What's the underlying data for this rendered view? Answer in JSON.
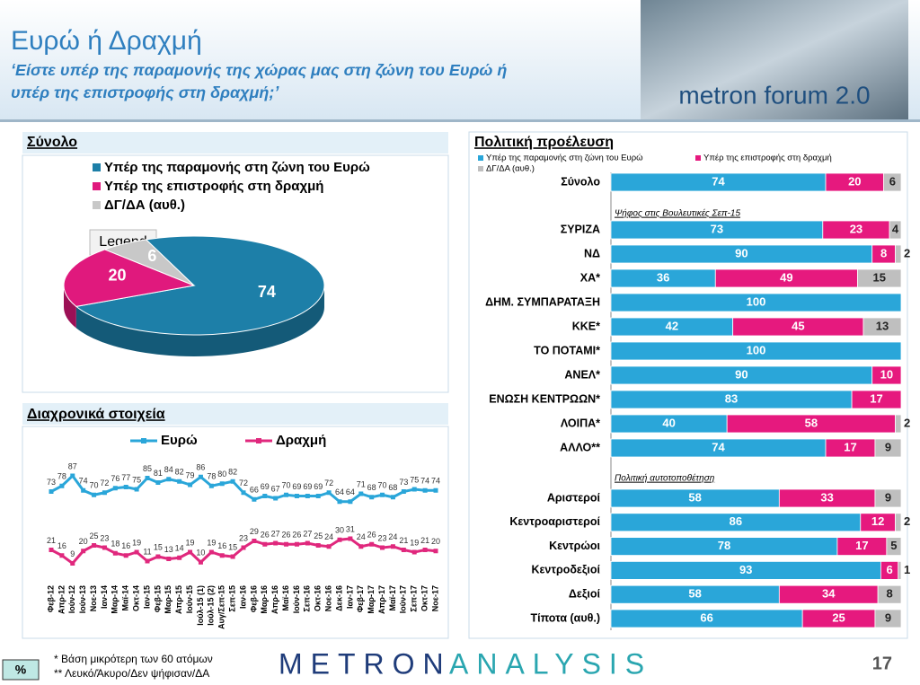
{
  "header": {
    "title": "Ευρώ ή Δραχμή",
    "subtitle_line1": "‘Είστε υπέρ της παραμονής της χώρας μας στη ζώνη του Ευρώ ή",
    "subtitle_line2": "υπέρ της επιστροφής στη δραχμή;’",
    "logo": "metron forum 2.0"
  },
  "chart_data": [
    {
      "type": "pie",
      "title": "Σύνολο",
      "legend_title": "Legend",
      "categories": [
        "Υπέρ της παραμονής στη ζώνη του Ευρώ",
        "Υπέρ της επιστροφής στη δραχμή",
        "ΔΓ/ΔΑ (αυθ.)"
      ],
      "values": [
        74,
        20,
        6
      ],
      "colors": [
        "#1d7fa8",
        "#e0197d",
        "#c8c8c8"
      ]
    },
    {
      "type": "line",
      "title": "Διαχρονικά στοιχεία",
      "categories": [
        "Φεβ-12",
        "Απρ-12",
        "Ιούν-12",
        "Ιούν-13",
        "Νοε-13",
        "Ιαν-14",
        "Μαρ-14",
        "Μαϊ-14",
        "Οκτ-14",
        "Ιαν-15",
        "Φεβ-15",
        "Μαρ-15",
        "Απρ-15",
        "Ιούν-15",
        "Ιούλ-15 (1)",
        "Ιούλ-15 (2)",
        "Αυγ/Σεπ-15",
        "Σεπ-15",
        "Ιαν-16",
        "Φεβ-16",
        "Μαρ-16",
        "Απρ-16",
        "Μαϊ-16",
        "Ιούν-16",
        "Σεπ-16",
        "Οκτ-16",
        "Νοε-16",
        "Δεκ-16",
        "Ιαν-17",
        "Φεβ-17",
        "Μαρ-17",
        "Απρ-17",
        "Μαϊ-17",
        "Ιούν-17",
        "Σεπ-17",
        "Οκτ-17",
        "Νοε-17"
      ],
      "series": [
        {
          "name": "Ευρώ",
          "color": "#2aa6d9",
          "values": [
            73,
            78,
            87,
            74,
            70,
            72,
            76,
            77,
            75,
            85,
            81,
            84,
            82,
            79,
            86,
            78,
            80,
            82,
            72,
            66,
            69,
            67,
            70,
            69,
            69,
            69,
            72,
            64,
            64,
            71,
            68,
            70,
            68,
            73,
            75,
            74,
            74
          ]
        },
        {
          "name": "Δραχμή",
          "color": "#e0287d",
          "values": [
            21,
            16,
            9,
            20,
            25,
            23,
            18,
            16,
            19,
            11,
            15,
            13,
            14,
            19,
            10,
            19,
            16,
            15,
            23,
            29,
            26,
            27,
            26,
            26,
            27,
            25,
            24,
            30,
            31,
            24,
            26,
            23,
            24,
            21,
            19,
            21,
            20
          ]
        }
      ]
    },
    {
      "type": "stacked_bar",
      "title": "Πολιτική προέλευση",
      "group_labels": [
        "Ψήφος στις Βουλευτικές Σεπ-15",
        "Πολιτική αυτοτοποθέτηση"
      ],
      "categories": [
        "Σύνολο",
        "ΣΥΡΙΖΑ",
        "ΝΔ",
        "ΧΑ*",
        "ΔΗΜ. ΣΥΜΠΑΡΑΤΑΞΗ",
        "ΚΚΕ*",
        "ΤΟ ΠΟΤΑΜΙ*",
        "ΑΝΕΛ*",
        "ΕΝΩΣΗ ΚΕΝΤΡΩΩΝ*",
        "ΛΟΙΠΑ*",
        "ΑΛΛΟ**",
        "Αριστεροί",
        "Κεντροαριστεροί",
        "Κεντρώοι",
        "Κεντροδεξιοί",
        "Δεξιοί",
        "Τίποτα (αυθ.)"
      ],
      "series": [
        {
          "name": "Υπέρ της παραμονής στη ζώνη του Ευρώ",
          "color": "#2aa6d9",
          "values": [
            74,
            73,
            90,
            36,
            100,
            42,
            100,
            90,
            83,
            40,
            74,
            58,
            86,
            78,
            93,
            58,
            66
          ]
        },
        {
          "name": "Υπέρ της επιστροφής στη δραχμή",
          "color": "#e6197e",
          "values": [
            20,
            23,
            8,
            49,
            0,
            45,
            0,
            10,
            17,
            58,
            17,
            33,
            12,
            17,
            6,
            34,
            25
          ]
        },
        {
          "name": "ΔΓ/ΔΑ (αυθ.)",
          "color": "#bfbfbf",
          "values": [
            6,
            4,
            2,
            15,
            0,
            13,
            0,
            0,
            0,
            2,
            9,
            9,
            2,
            5,
            1,
            8,
            9
          ]
        }
      ]
    }
  ],
  "footer": {
    "percent": "%",
    "note1": "*  Βάση μικρότερη των 60 ατόμων",
    "note2": "** Λευκό/Άκυρο/Δεν ψήφισαν/ΔΑ",
    "brand_a": "METRON",
    "brand_b": "ANALYSIS",
    "page": "17"
  }
}
